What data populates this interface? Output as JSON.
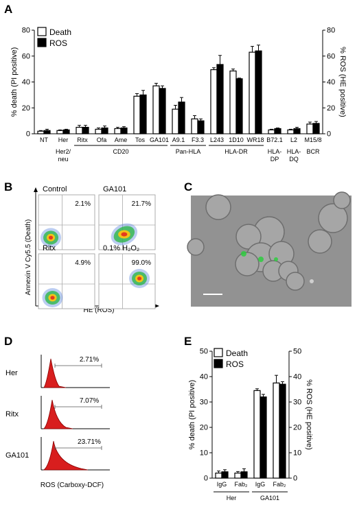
{
  "panels": {
    "A": {
      "letter": "A",
      "chart_data": {
        "type": "bar",
        "ylabel_left": "% death (PI positive)",
        "ylabel_right": "% ROS (HE positive)",
        "ylim": [
          0,
          80
        ],
        "yticks": [
          0,
          20,
          40,
          60,
          80
        ],
        "categories": [
          "NT",
          "Her",
          "Ritx",
          "Ofa",
          "Ame",
          "Tos",
          "GA101",
          "A9.1",
          "F3.3",
          "L243",
          "1D10",
          "WR18",
          "B72.1",
          "L2",
          "M15/8"
        ],
        "series": [
          {
            "name": "Death",
            "color": "#ffffff",
            "values": [
              2,
              2.5,
              5,
              3.5,
              4,
              29,
              37,
              19,
              11.5,
              49.5,
              48.5,
              63,
              3,
              3,
              7.5
            ],
            "errors": [
              0.5,
              0.5,
              1.5,
              1,
              1,
              2,
              2,
              3,
              2.5,
              1.5,
              1.5,
              4.5,
              0.5,
              0.5,
              1.5
            ]
          },
          {
            "name": "ROS",
            "color": "#000000",
            "values": [
              2.5,
              3,
              5,
              4.5,
              4.5,
              30,
              35,
              24.5,
              10,
              53.5,
              42.5,
              64,
              4,
              4,
              8
            ],
            "errors": [
              1,
              0.5,
              1.5,
              1.5,
              1,
              3.5,
              2,
              3.5,
              1.5,
              7,
              0.5,
              4.5,
              0.5,
              1,
              1.5
            ]
          }
        ],
        "groups": [
          {
            "label": "Her2/\nneu",
            "from": 1,
            "to": 1
          },
          {
            "label": "CD20",
            "from": 2,
            "to": 6
          },
          {
            "label": "Pan-HLA",
            "from": 7,
            "to": 8
          },
          {
            "label": "HLA-DR",
            "from": 9,
            "to": 11
          },
          {
            "label": "HLA-\nDP",
            "from": 12,
            "to": 12
          },
          {
            "label": "HLA-\nDQ",
            "from": 13,
            "to": 13
          },
          {
            "label": "BCR",
            "from": 14,
            "to": 14
          }
        ]
      }
    },
    "B": {
      "letter": "B",
      "ylabel": "Annexin V Cy5.5 (Death)",
      "xlabel": "HE (ROS)",
      "plots": [
        {
          "label": "Control",
          "value": "2.1%"
        },
        {
          "label": "GA101",
          "value": "21.7%"
        },
        {
          "label": "Ritx",
          "value": "4.9%"
        },
        {
          "label": "0.1% H₂O₂",
          "value": "99.0%"
        }
      ]
    },
    "C": {
      "letter": "C"
    },
    "D": {
      "letter": "D",
      "xlabel": "ROS (Carboxy-DCF)",
      "histograms": [
        {
          "label": "Her",
          "value": "2.71%"
        },
        {
          "label": "Ritx",
          "value": "7.07%"
        },
        {
          "label": "GA101",
          "value": "23.71%"
        }
      ]
    },
    "E": {
      "letter": "E",
      "chart_data": {
        "type": "bar",
        "ylabel_left": "% death (PI positive)",
        "ylabel_right": "% ROS (HE positive)",
        "ylim": [
          0,
          50
        ],
        "yticks": [
          0,
          10,
          20,
          30,
          40,
          50
        ],
        "categories": [
          "IgG",
          "Fab₂",
          "IgG",
          "Fab₂"
        ],
        "series": [
          {
            "name": "Death",
            "color": "#ffffff",
            "values": [
              2,
              2,
              34.5,
              37.5
            ],
            "errors": [
              0.8,
              0.6,
              0.7,
              3
            ]
          },
          {
            "name": "ROS",
            "color": "#000000",
            "values": [
              2.5,
              2.5,
              32,
              37
            ],
            "errors": [
              0.8,
              1.2,
              1,
              1
            ]
          }
        ],
        "groups": [
          {
            "label": "Her",
            "from": 0,
            "to": 1
          },
          {
            "label": "GA101",
            "from": 2,
            "to": 3
          }
        ]
      }
    }
  }
}
